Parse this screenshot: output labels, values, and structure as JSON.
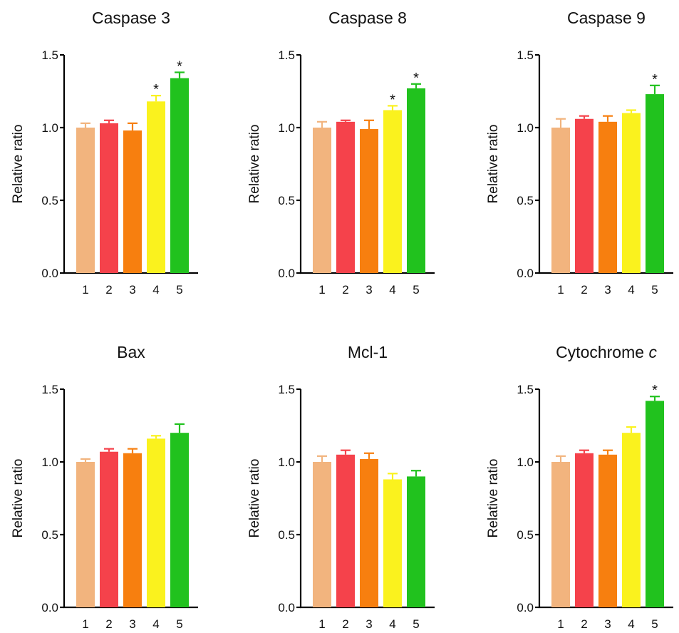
{
  "chart_data": [
    {
      "type": "bar",
      "title": "Caspase 3",
      "title_italic": "",
      "ylabel": "Relative ratio",
      "xlabel": "",
      "ylim": [
        0,
        1.5
      ],
      "yticks": [
        "0.0",
        "0.5",
        "1.0",
        "1.5"
      ],
      "categories": [
        "1",
        "2",
        "3",
        "4",
        "5"
      ],
      "values": [
        1.0,
        1.03,
        0.98,
        1.18,
        1.34
      ],
      "errors": [
        0.03,
        0.02,
        0.05,
        0.04,
        0.04
      ],
      "significant": [
        "",
        "",
        "",
        "*",
        "*"
      ],
      "colors": [
        "#F2B47E",
        "#F5424B",
        "#F77F0F",
        "#FAF21E",
        "#21C21E"
      ]
    },
    {
      "type": "bar",
      "title": "Caspase 8",
      "title_italic": "",
      "ylabel": "Relative ratio",
      "xlabel": "",
      "ylim": [
        0,
        1.5
      ],
      "yticks": [
        "0.0",
        "0.5",
        "1.0",
        "1.5"
      ],
      "categories": [
        "1",
        "2",
        "3",
        "4",
        "5"
      ],
      "values": [
        1.0,
        1.04,
        0.99,
        1.12,
        1.27
      ],
      "errors": [
        0.04,
        0.01,
        0.06,
        0.03,
        0.03
      ],
      "significant": [
        "",
        "",
        "",
        "*",
        "*"
      ],
      "colors": [
        "#F2B47E",
        "#F5424B",
        "#F77F0F",
        "#FAF21E",
        "#21C21E"
      ]
    },
    {
      "type": "bar",
      "title": "Caspase 9",
      "title_italic": "",
      "ylabel": "Relative ratio",
      "xlabel": "",
      "ylim": [
        0,
        1.5
      ],
      "yticks": [
        "0.0",
        "0.5",
        "1.0",
        "1.5"
      ],
      "categories": [
        "1",
        "2",
        "3",
        "4",
        "5"
      ],
      "values": [
        1.0,
        1.06,
        1.04,
        1.1,
        1.23
      ],
      "errors": [
        0.06,
        0.02,
        0.04,
        0.02,
        0.06
      ],
      "significant": [
        "",
        "",
        "",
        "",
        "*"
      ],
      "colors": [
        "#F2B47E",
        "#F5424B",
        "#F77F0F",
        "#FAF21E",
        "#21C21E"
      ]
    },
    {
      "type": "bar",
      "title": "Bax",
      "title_italic": "",
      "ylabel": "Relative ratio",
      "xlabel": "",
      "ylim": [
        0,
        1.5
      ],
      "yticks": [
        "0.0",
        "0.5",
        "1.0",
        "1.5"
      ],
      "categories": [
        "1",
        "2",
        "3",
        "4",
        "5"
      ],
      "values": [
        1.0,
        1.07,
        1.06,
        1.16,
        1.2
      ],
      "errors": [
        0.02,
        0.02,
        0.03,
        0.02,
        0.06
      ],
      "significant": [
        "",
        "",
        "",
        "",
        ""
      ],
      "colors": [
        "#F2B47E",
        "#F5424B",
        "#F77F0F",
        "#FAF21E",
        "#21C21E"
      ]
    },
    {
      "type": "bar",
      "title": "Mcl-1",
      "title_italic": "",
      "ylabel": "Relative ratio",
      "xlabel": "",
      "ylim": [
        0,
        1.5
      ],
      "yticks": [
        "0.0",
        "0.5",
        "1.0",
        "1.5"
      ],
      "categories": [
        "1",
        "2",
        "3",
        "4",
        "5"
      ],
      "values": [
        1.0,
        1.05,
        1.02,
        0.88,
        0.9
      ],
      "errors": [
        0.04,
        0.03,
        0.04,
        0.04,
        0.04
      ],
      "significant": [
        "",
        "",
        "",
        "",
        ""
      ],
      "colors": [
        "#F2B47E",
        "#F5424B",
        "#F77F0F",
        "#FAF21E",
        "#21C21E"
      ]
    },
    {
      "type": "bar",
      "title": "Cytochrome ",
      "title_italic": "c",
      "ylabel": "Relative ratio",
      "xlabel": "",
      "ylim": [
        0,
        1.5
      ],
      "yticks": [
        "0.0",
        "0.5",
        "1.0",
        "1.5"
      ],
      "categories": [
        "1",
        "2",
        "3",
        "4",
        "5"
      ],
      "values": [
        1.0,
        1.06,
        1.05,
        1.2,
        1.42
      ],
      "errors": [
        0.04,
        0.02,
        0.03,
        0.04,
        0.03
      ],
      "significant": [
        "",
        "",
        "",
        "",
        "*"
      ],
      "colors": [
        "#F2B47E",
        "#F5424B",
        "#F77F0F",
        "#FAF21E",
        "#21C21E"
      ]
    }
  ]
}
